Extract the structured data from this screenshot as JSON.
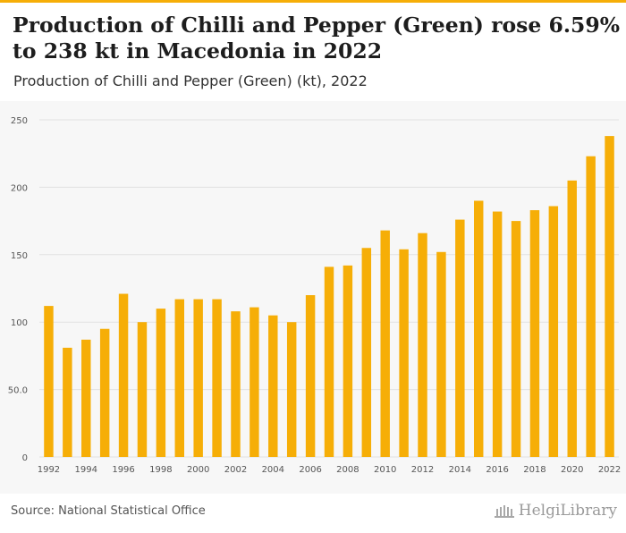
{
  "header": {
    "title": "Production of Chilli and Pepper (Green) rose 6.59% to 238 kt in Macedonia in 2022",
    "subtitle": "Production of Chilli and Pepper (Green) (kt), 2022"
  },
  "footer": {
    "source": "Source: National Statistical Office",
    "logo_text": "HelgiLibrary"
  },
  "colors": {
    "bar": "#f6ae07",
    "accent": "#f6ae07",
    "grid": "#e2e2e2"
  },
  "chart_data": {
    "type": "bar",
    "title": "Production of Chilli and Pepper (Green) (kt), 2022",
    "xlabel": "",
    "ylabel": "",
    "categories": [
      "1992",
      "1993",
      "1994",
      "1995",
      "1996",
      "1997",
      "1998",
      "1999",
      "2000",
      "2001",
      "2002",
      "2003",
      "2004",
      "2005",
      "2006",
      "2007",
      "2008",
      "2009",
      "2010",
      "2011",
      "2012",
      "2013",
      "2014",
      "2015",
      "2016",
      "2017",
      "2018",
      "2019",
      "2020",
      "2021",
      "2022"
    ],
    "values": [
      112,
      81,
      87,
      95,
      121,
      100,
      110,
      117,
      117,
      117,
      108,
      111,
      105,
      100,
      120,
      141,
      142,
      155,
      168,
      154,
      166,
      152,
      176,
      190,
      182,
      175,
      183,
      186,
      205,
      223,
      238
    ],
    "ylim": [
      0,
      250
    ],
    "yticks": [
      0,
      50,
      100,
      150,
      200,
      250
    ],
    "ytick_labels": [
      "0",
      "50.0",
      "100",
      "150",
      "200",
      "250"
    ],
    "xtick_labels": [
      "1992",
      "1994",
      "1996",
      "1998",
      "2000",
      "2002",
      "2004",
      "2006",
      "2008",
      "2010",
      "2012",
      "2014",
      "2016",
      "2018",
      "2020",
      "2022"
    ],
    "grid": true
  }
}
